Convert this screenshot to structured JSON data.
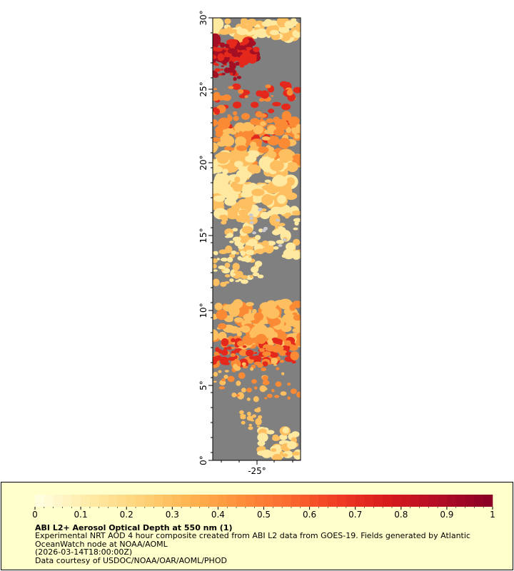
{
  "map": {
    "lat_labels": [
      "0°",
      "5°",
      "10°",
      "15°",
      "20°",
      "25°",
      "30°"
    ],
    "lon_labels": [
      "-25°"
    ],
    "land_color": "#808080",
    "colors": {
      "light": "#ffe9a0",
      "mid": "#fdbf5f",
      "orange": "#fb8a35",
      "red": "#e4291c",
      "dark": "#a50f23"
    }
  },
  "colorbar": {
    "ticks": [
      "0",
      "0.1",
      "0.2",
      "0.3",
      "0.4",
      "0.5",
      "0.6",
      "0.7",
      "0.8",
      "0.9",
      "1"
    ],
    "stops": [
      "#ffffe0",
      "#ffeaa5",
      "#fed47c",
      "#feb54f",
      "#fd913c",
      "#fb6a2f",
      "#ef3b24",
      "#d7191c",
      "#b30d26",
      "#8b0024"
    ]
  },
  "legend": {
    "title": "ABI L2+ Aerosol Optical Depth at 550 nm (1)",
    "description": "Experimental NRT AOD 4 hour composite created from ABI L2 data from GOES-19. Fields generated by Atlantic OceanWatch node at NOAA/AOML",
    "timestamp": "(2026-03-14T18:00:00Z)",
    "credit": "Data courtesy of USDOC/NOAA/OAR/AOML/PHOD"
  }
}
